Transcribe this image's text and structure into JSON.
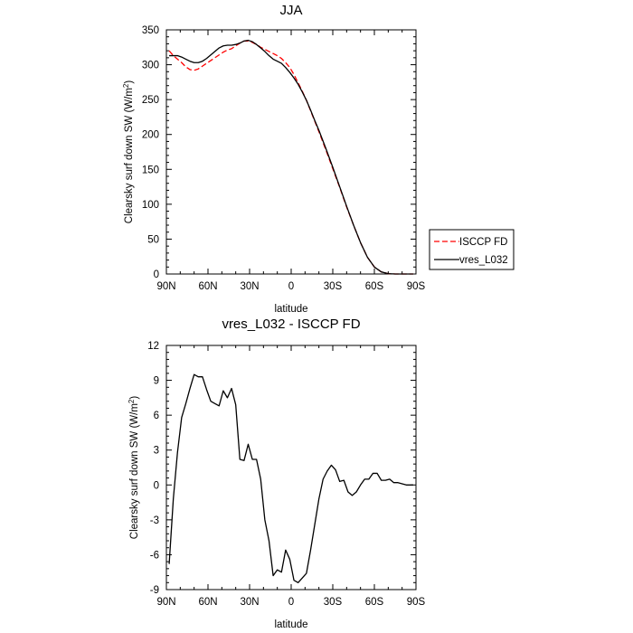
{
  "chart_data": [
    {
      "type": "line",
      "title": "JJA",
      "xlabel": "latitude",
      "ylabel_main": "Clearsky surf down SW (W/m",
      "ylabel_sup": "2",
      "ylabel_close": ")",
      "x_ticks": [
        90,
        60,
        30,
        0,
        -30,
        -60,
        -90
      ],
      "x_tick_labels": [
        "90N",
        "60N",
        "30N",
        "0",
        "30S",
        "60S",
        "90S"
      ],
      "xlim": [
        90,
        -90
      ],
      "y_ticks": [
        0,
        50,
        100,
        150,
        200,
        250,
        300,
        350
      ],
      "ylim": [
        0,
        350
      ],
      "grid": false,
      "legend_position": "right",
      "series": [
        {
          "name": "ISCCP FD",
          "color": "#ff0000",
          "dash": "dashed",
          "x": [
            88,
            85,
            82,
            79,
            76,
            73,
            70,
            67,
            64,
            61,
            58,
            55,
            52,
            49,
            46,
            43,
            40,
            37,
            34,
            31,
            28,
            25,
            22,
            19,
            16,
            13,
            10,
            7,
            4,
            1,
            -2,
            -5,
            -8,
            -11,
            -14,
            -17,
            -20,
            -25,
            -30,
            -35,
            -40,
            -45,
            -50,
            -55,
            -60,
            -65,
            -70,
            -75,
            -80,
            -85,
            -88
          ],
          "y": [
            320,
            313,
            308,
            303,
            297,
            293,
            292,
            294,
            298,
            302,
            306,
            310,
            314,
            318,
            321,
            323,
            327,
            331,
            334,
            334,
            332,
            329,
            325,
            322,
            319,
            316,
            313,
            309,
            303,
            296,
            286,
            274,
            262,
            249,
            234,
            219,
            204,
            178,
            151,
            124,
            96,
            70,
            45,
            24,
            10,
            3,
            0.5,
            0,
            0,
            0,
            0
          ]
        },
        {
          "name": "vres_L032",
          "color": "#000000",
          "dash": "solid",
          "x": [
            88,
            85,
            82,
            79,
            76,
            73,
            70,
            67,
            64,
            61,
            58,
            55,
            52,
            49,
            46,
            43,
            40,
            37,
            34,
            31,
            28,
            25,
            22,
            19,
            16,
            13,
            10,
            7,
            4,
            1,
            -2,
            -5,
            -8,
            -11,
            -14,
            -17,
            -20,
            -25,
            -30,
            -35,
            -40,
            -45,
            -50,
            -55,
            -60,
            -65,
            -70,
            -75,
            -80,
            -85,
            -88
          ],
          "y": [
            313,
            313,
            313,
            311,
            308,
            305,
            303,
            303,
            305,
            309,
            314,
            319,
            324,
            327,
            328,
            328,
            329,
            331,
            334,
            335,
            333,
            329,
            324,
            319,
            313,
            308,
            305,
            302,
            296,
            289,
            281,
            272,
            261,
            249,
            235,
            220,
            206,
            180,
            153,
            125,
            97,
            70,
            45,
            24,
            10,
            3,
            0.5,
            0,
            0,
            0,
            0
          ]
        }
      ]
    },
    {
      "type": "line",
      "title": "vres_L032 - ISCCP FD",
      "xlabel": "latitude",
      "ylabel_main": "Clearsky surf down SW (W/m",
      "ylabel_sup": "2",
      "ylabel_close": ")",
      "x_ticks": [
        90,
        60,
        30,
        0,
        -30,
        -60,
        -90
      ],
      "x_tick_labels": [
        "90N",
        "60N",
        "30N",
        "0",
        "30S",
        "60S",
        "90S"
      ],
      "xlim": [
        90,
        -90
      ],
      "y_ticks": [
        -9,
        -6,
        -3,
        0,
        3,
        6,
        9,
        12
      ],
      "ylim": [
        -9,
        12
      ],
      "grid": false,
      "series": [
        {
          "name": "",
          "color": "#000000",
          "dash": "solid",
          "x": [
            88,
            85,
            82,
            79,
            76,
            73,
            70,
            67,
            64,
            61,
            58,
            55,
            52,
            49,
            46,
            43,
            40,
            37,
            34,
            31,
            28,
            25,
            22,
            19,
            16,
            13,
            10,
            7,
            4,
            1,
            -2,
            -5,
            -8,
            -11,
            -14,
            -17,
            -20,
            -23,
            -26,
            -29,
            -32,
            -35,
            -38,
            -41,
            -44,
            -47,
            -50,
            -53,
            -56,
            -59,
            -62,
            -65,
            -68,
            -71,
            -74,
            -77,
            -80,
            -83,
            -86,
            -88
          ],
          "y": [
            -6.8,
            -1.2,
            2.8,
            5.8,
            7.0,
            8.3,
            9.5,
            9.3,
            9.3,
            8.2,
            7.2,
            7.0,
            6.8,
            8.1,
            7.5,
            8.3,
            6.9,
            2.2,
            2.1,
            3.5,
            2.2,
            2.2,
            0.5,
            -3.0,
            -4.8,
            -7.8,
            -7.3,
            -7.5,
            -5.6,
            -6.4,
            -8.2,
            -8.4,
            -8.0,
            -7.6,
            -5.6,
            -3.4,
            -1.2,
            0.5,
            1.2,
            1.7,
            1.3,
            0.3,
            0.4,
            -0.6,
            -0.9,
            -0.6,
            0.0,
            0.5,
            0.5,
            1.0,
            1.0,
            0.4,
            0.4,
            0.5,
            0.2,
            0.2,
            0.1,
            0.0,
            0.0,
            0.0
          ]
        }
      ]
    }
  ]
}
